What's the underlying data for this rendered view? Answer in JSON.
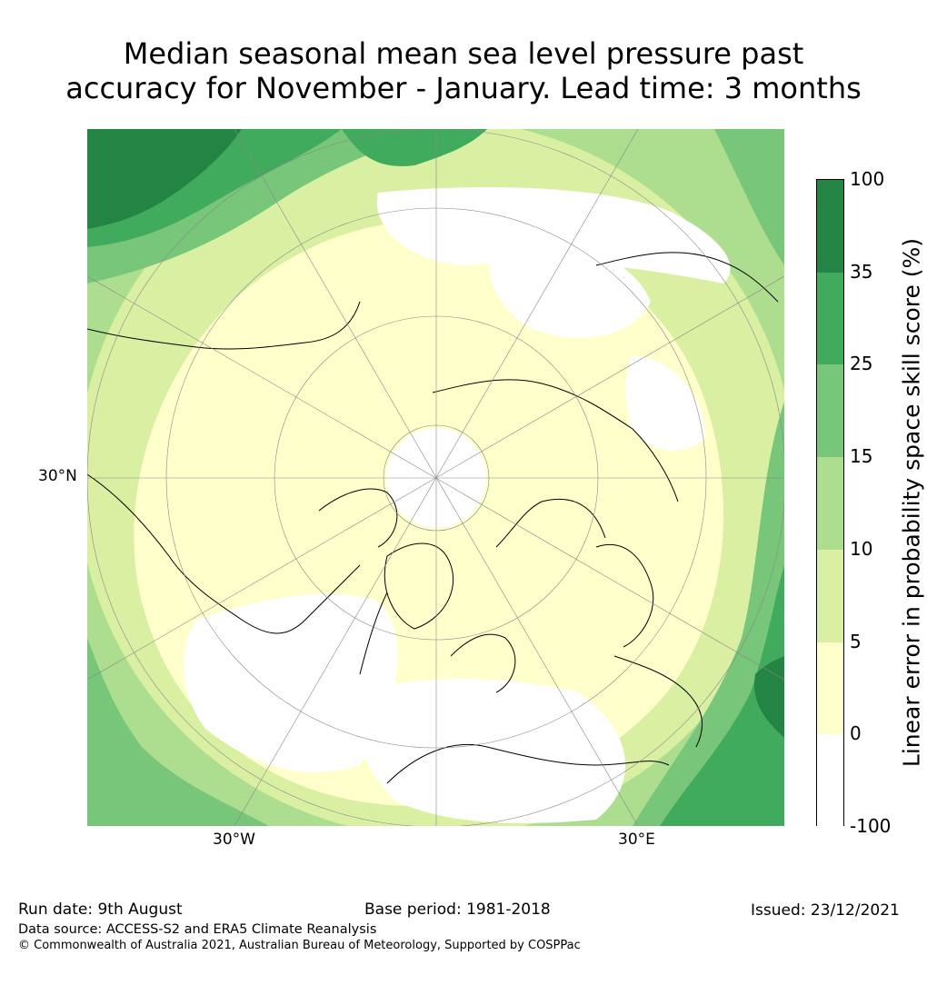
{
  "title": {
    "line1": "Median seasonal mean sea level pressure past",
    "line2": "accuracy for November - January. Lead time: 3 months"
  },
  "map": {
    "projection": "north polar stereographic",
    "graticule_labels": {
      "lat": "30°N",
      "lon_west": "30°W",
      "lon_east": "30°E"
    },
    "colors": {
      "band_lt0": "#ffffff",
      "band_0_5": "#ffffcc",
      "band_5_10": "#d9f0a3",
      "band_10_15": "#addd8e",
      "band_15_25": "#78c679",
      "band_25_35": "#41ab5d",
      "band_35_100": "#238443",
      "coastline": "#000000"
    }
  },
  "colorbar": {
    "label": "Linear error in probability space skill score (%)",
    "ticks": [
      "100",
      "35",
      "25",
      "15",
      "10",
      "5",
      "0",
      "-100"
    ],
    "boundaries": [
      -100,
      0,
      5,
      10,
      15,
      25,
      35,
      100
    ],
    "colors": [
      "#ffffff",
      "#ffffcc",
      "#d9f0a3",
      "#addd8e",
      "#78c679",
      "#41ab5d",
      "#238443"
    ]
  },
  "footer": {
    "run_date": "Run date: 9th August",
    "base_period": "Base period: 1981-2018",
    "issued": "Issued: 23/12/2021",
    "data_source": "Data source: ACCESS-S2 and ERA5 Climate Reanalysis",
    "copyright": "© Commonwealth of Australia 2021, Australian Bureau of Meteorology, Supported by COSPPac"
  }
}
